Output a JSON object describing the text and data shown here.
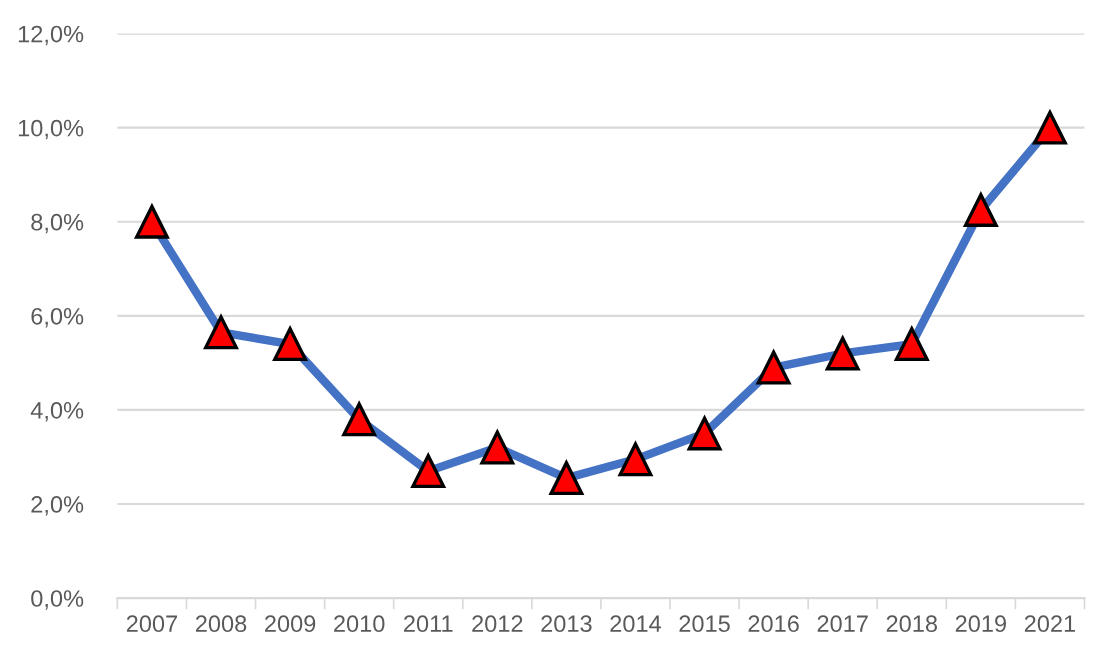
{
  "chart_data": {
    "type": "line",
    "categories": [
      "2007",
      "2008",
      "2009",
      "2010",
      "2011",
      "2012",
      "2013",
      "2014",
      "2015",
      "2016",
      "2017",
      "2018",
      "2019",
      "2021"
    ],
    "series": [
      {
        "color": "#4472c4",
        "values": [
          8.0,
          5.65,
          5.4,
          3.8,
          2.7,
          3.2,
          2.55,
          2.95,
          3.5,
          4.9,
          5.2,
          5.4,
          8.25,
          10.0
        ]
      }
    ],
    "ylim": [
      0,
      12
    ],
    "yticks": [
      {
        "value": 0,
        "label": "0,0%"
      },
      {
        "value": 2,
        "label": "2,0%"
      },
      {
        "value": 4,
        "label": "4,0%"
      },
      {
        "value": 6,
        "label": "6,0%"
      },
      {
        "value": 8,
        "label": "8,0%"
      },
      {
        "value": 10,
        "label": "10,0%"
      },
      {
        "value": 12,
        "label": "12,0%"
      }
    ],
    "grid": "y",
    "marker": "triangle",
    "line_style": "solid"
  }
}
